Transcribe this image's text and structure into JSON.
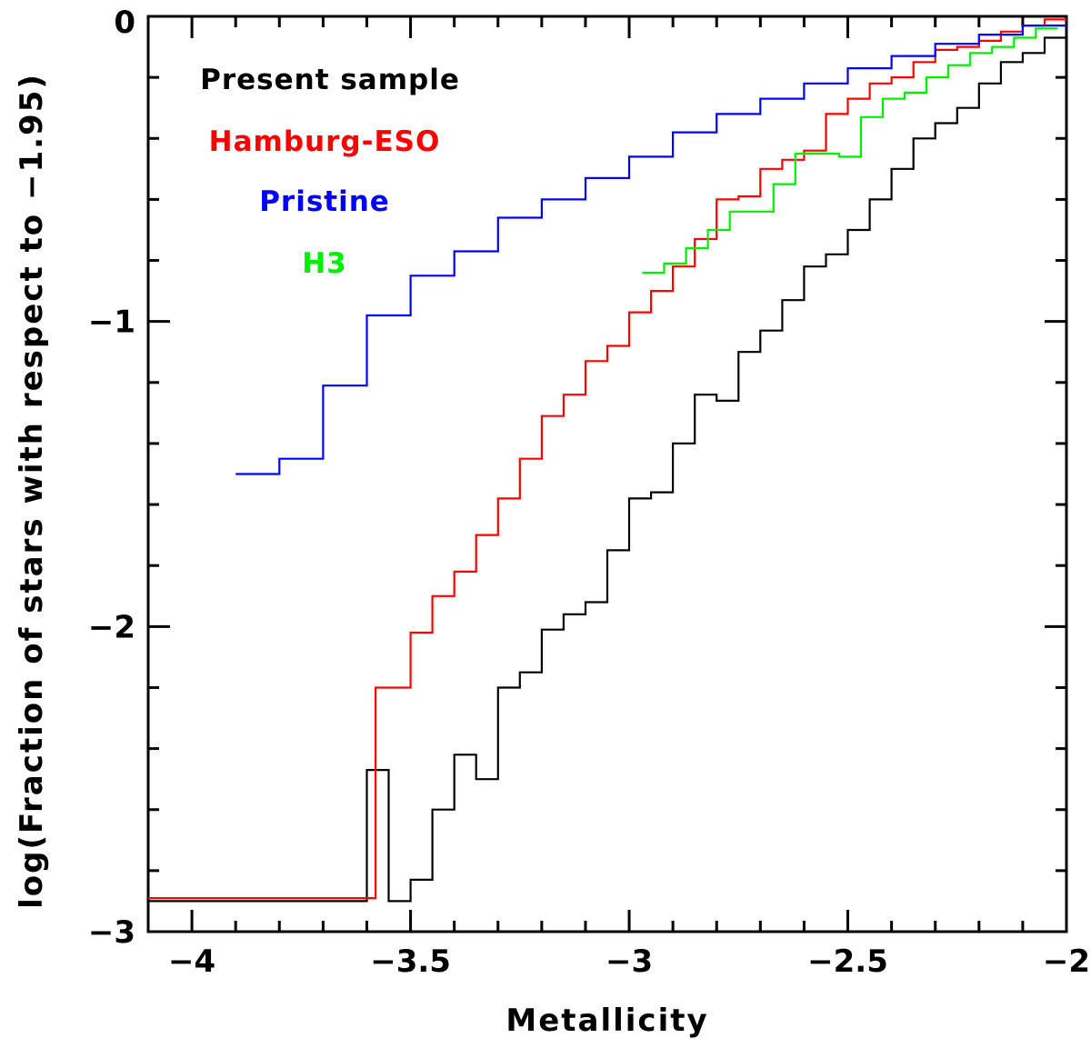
{
  "chart_data": {
    "type": "line",
    "step": true,
    "xlabel": "Metallicity",
    "ylabel": "log(Fraction of stars with respect to −1.95)",
    "xlim": [
      -4.1,
      -2.0
    ],
    "ylim": [
      -3.0,
      0.0
    ],
    "x_ticks": [
      -4.0,
      -3.5,
      -3.0,
      -2.5,
      -2.0
    ],
    "x_tick_labels": [
      "−4",
      "−3.5",
      "−3",
      "−2.5",
      "−2"
    ],
    "y_ticks": [
      -3,
      -2,
      -1,
      0
    ],
    "y_tick_labels": [
      "−3",
      "−2",
      "−1",
      "0"
    ],
    "grid": false,
    "legend_position": "top-left",
    "series": [
      {
        "name": "Present sample",
        "color": "#000000",
        "x": [
          -4.1,
          -3.6,
          -3.6,
          -3.55,
          -3.55,
          -3.5,
          -3.5,
          -3.45,
          -3.45,
          -3.4,
          -3.4,
          -3.35,
          -3.35,
          -3.3,
          -3.3,
          -3.25,
          -3.25,
          -3.2,
          -3.2,
          -3.15,
          -3.15,
          -3.1,
          -3.1,
          -3.05,
          -3.05,
          -3.0,
          -3.0,
          -2.95,
          -2.95,
          -2.9,
          -2.9,
          -2.85,
          -2.85,
          -2.8,
          -2.8,
          -2.75,
          -2.75,
          -2.7,
          -2.7,
          -2.65,
          -2.65,
          -2.6,
          -2.6,
          -2.55,
          -2.55,
          -2.5,
          -2.5,
          -2.45,
          -2.45,
          -2.4,
          -2.4,
          -2.35,
          -2.35,
          -2.3,
          -2.3,
          -2.25,
          -2.25,
          -2.2,
          -2.2,
          -2.15,
          -2.15,
          -2.1,
          -2.1,
          -2.05,
          -2.05,
          -2.0
        ],
        "y": [
          -2.9,
          -2.9,
          -2.47,
          -2.47,
          -2.9,
          -2.9,
          -2.83,
          -2.83,
          -2.6,
          -2.6,
          -2.42,
          -2.42,
          -2.5,
          -2.5,
          -2.2,
          -2.2,
          -2.15,
          -2.15,
          -2.01,
          -2.01,
          -1.96,
          -1.96,
          -1.92,
          -1.92,
          -1.75,
          -1.75,
          -1.58,
          -1.58,
          -1.56,
          -1.56,
          -1.4,
          -1.4,
          -1.24,
          -1.24,
          -1.26,
          -1.26,
          -1.1,
          -1.1,
          -1.03,
          -1.03,
          -0.93,
          -0.93,
          -0.82,
          -0.82,
          -0.78,
          -0.78,
          -0.7,
          -0.7,
          -0.6,
          -0.6,
          -0.5,
          -0.5,
          -0.4,
          -0.4,
          -0.35,
          -0.35,
          -0.3,
          -0.3,
          -0.22,
          -0.22,
          -0.15,
          -0.15,
          -0.12,
          -0.12,
          -0.07,
          -0.07
        ]
      },
      {
        "name": "Hamburg-ESO",
        "color": "#ff0000",
        "x": [
          -4.1,
          -3.58,
          -3.58,
          -3.5,
          -3.5,
          -3.45,
          -3.45,
          -3.4,
          -3.4,
          -3.35,
          -3.35,
          -3.3,
          -3.3,
          -3.25,
          -3.25,
          -3.2,
          -3.2,
          -3.15,
          -3.15,
          -3.1,
          -3.1,
          -3.05,
          -3.05,
          -3.0,
          -3.0,
          -2.95,
          -2.95,
          -2.9,
          -2.9,
          -2.85,
          -2.85,
          -2.8,
          -2.8,
          -2.75,
          -2.75,
          -2.7,
          -2.7,
          -2.65,
          -2.65,
          -2.6,
          -2.6,
          -2.55,
          -2.55,
          -2.5,
          -2.5,
          -2.45,
          -2.45,
          -2.4,
          -2.4,
          -2.35,
          -2.35,
          -2.3,
          -2.3,
          -2.25,
          -2.25,
          -2.2,
          -2.2,
          -2.15,
          -2.15,
          -2.1,
          -2.1,
          -2.05,
          -2.05,
          -2.0
        ],
        "y": [
          -2.89,
          -2.89,
          -2.2,
          -2.2,
          -2.02,
          -2.02,
          -1.9,
          -1.9,
          -1.82,
          -1.82,
          -1.7,
          -1.7,
          -1.58,
          -1.58,
          -1.45,
          -1.45,
          -1.31,
          -1.31,
          -1.24,
          -1.24,
          -1.13,
          -1.13,
          -1.08,
          -1.08,
          -0.97,
          -0.97,
          -0.9,
          -0.9,
          -0.82,
          -0.82,
          -0.73,
          -0.73,
          -0.6,
          -0.6,
          -0.59,
          -0.59,
          -0.5,
          -0.5,
          -0.47,
          -0.47,
          -0.44,
          -0.44,
          -0.32,
          -0.32,
          -0.27,
          -0.27,
          -0.22,
          -0.22,
          -0.2,
          -0.2,
          -0.15,
          -0.15,
          -0.11,
          -0.11,
          -0.1,
          -0.1,
          -0.08,
          -0.08,
          -0.05,
          -0.05,
          -0.03,
          -0.03,
          -0.01,
          -0.01
        ]
      },
      {
        "name": "Pristine",
        "color": "#0000ff",
        "x": [
          -3.9,
          -3.8,
          -3.8,
          -3.7,
          -3.7,
          -3.6,
          -3.6,
          -3.5,
          -3.5,
          -3.4,
          -3.4,
          -3.3,
          -3.3,
          -3.2,
          -3.2,
          -3.1,
          -3.1,
          -3.0,
          -3.0,
          -2.9,
          -2.9,
          -2.8,
          -2.8,
          -2.7,
          -2.7,
          -2.6,
          -2.6,
          -2.5,
          -2.5,
          -2.4,
          -2.4,
          -2.3,
          -2.3,
          -2.2,
          -2.2,
          -2.1,
          -2.1,
          -2.0
        ],
        "y": [
          -1.5,
          -1.5,
          -1.45,
          -1.45,
          -1.21,
          -1.21,
          -0.98,
          -0.98,
          -0.85,
          -0.85,
          -0.77,
          -0.77,
          -0.66,
          -0.66,
          -0.6,
          -0.6,
          -0.53,
          -0.53,
          -0.46,
          -0.46,
          -0.38,
          -0.38,
          -0.32,
          -0.32,
          -0.27,
          -0.27,
          -0.22,
          -0.22,
          -0.17,
          -0.17,
          -0.13,
          -0.13,
          -0.09,
          -0.09,
          -0.06,
          -0.06,
          -0.03,
          -0.03
        ]
      },
      {
        "name": "H3",
        "color": "#00ee00",
        "x": [
          -2.97,
          -2.92,
          -2.92,
          -2.87,
          -2.87,
          -2.82,
          -2.82,
          -2.77,
          -2.77,
          -2.72,
          -2.72,
          -2.67,
          -2.67,
          -2.62,
          -2.62,
          -2.57,
          -2.57,
          -2.52,
          -2.52,
          -2.47,
          -2.47,
          -2.42,
          -2.42,
          -2.37,
          -2.37,
          -2.32,
          -2.32,
          -2.27,
          -2.27,
          -2.22,
          -2.22,
          -2.17,
          -2.17,
          -2.12,
          -2.12,
          -2.07,
          -2.07,
          -2.02
        ],
        "y": [
          -0.84,
          -0.84,
          -0.81,
          -0.81,
          -0.76,
          -0.76,
          -0.7,
          -0.7,
          -0.64,
          -0.64,
          -0.64,
          -0.64,
          -0.55,
          -0.55,
          -0.45,
          -0.45,
          -0.45,
          -0.45,
          -0.46,
          -0.46,
          -0.33,
          -0.33,
          -0.27,
          -0.27,
          -0.25,
          -0.25,
          -0.2,
          -0.2,
          -0.16,
          -0.16,
          -0.12,
          -0.12,
          -0.1,
          -0.1,
          -0.07,
          -0.07,
          -0.04,
          -0.04
        ]
      }
    ]
  }
}
